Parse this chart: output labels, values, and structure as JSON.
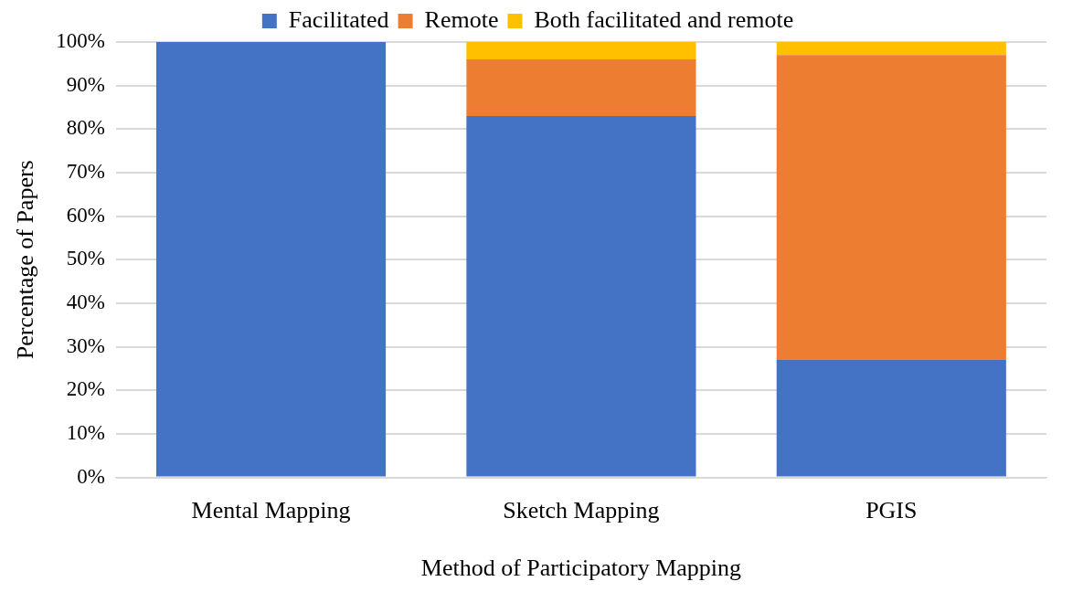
{
  "chart_data": {
    "type": "bar",
    "stacked": true,
    "xlabel": "Method of Participatory Mapping",
    "ylabel": "Percentage of Papers",
    "categories": [
      "Mental Mapping",
      "Sketch Mapping",
      "PGIS"
    ],
    "series": [
      {
        "name": "Facilitated",
        "color": "#4472c4",
        "values": [
          100,
          83,
          27
        ]
      },
      {
        "name": "Remote",
        "color": "#ed7d31",
        "values": [
          0,
          13,
          70
        ]
      },
      {
        "name": "Both facilitated and remote",
        "color": "#ffc000",
        "values": [
          0,
          4,
          3
        ]
      }
    ],
    "ylim": [
      0,
      100
    ],
    "yticks": [
      {
        "value": 0,
        "label": "0%"
      },
      {
        "value": 10,
        "label": "10%"
      },
      {
        "value": 20,
        "label": "20%"
      },
      {
        "value": 30,
        "label": "30%"
      },
      {
        "value": 40,
        "label": "40%"
      },
      {
        "value": 50,
        "label": "50%"
      },
      {
        "value": 60,
        "label": "60%"
      },
      {
        "value": 70,
        "label": "70%"
      },
      {
        "value": 80,
        "label": "80%"
      },
      {
        "value": 90,
        "label": "90%"
      },
      {
        "value": 100,
        "label": "100%"
      }
    ],
    "grid": "y",
    "legend": "top"
  }
}
